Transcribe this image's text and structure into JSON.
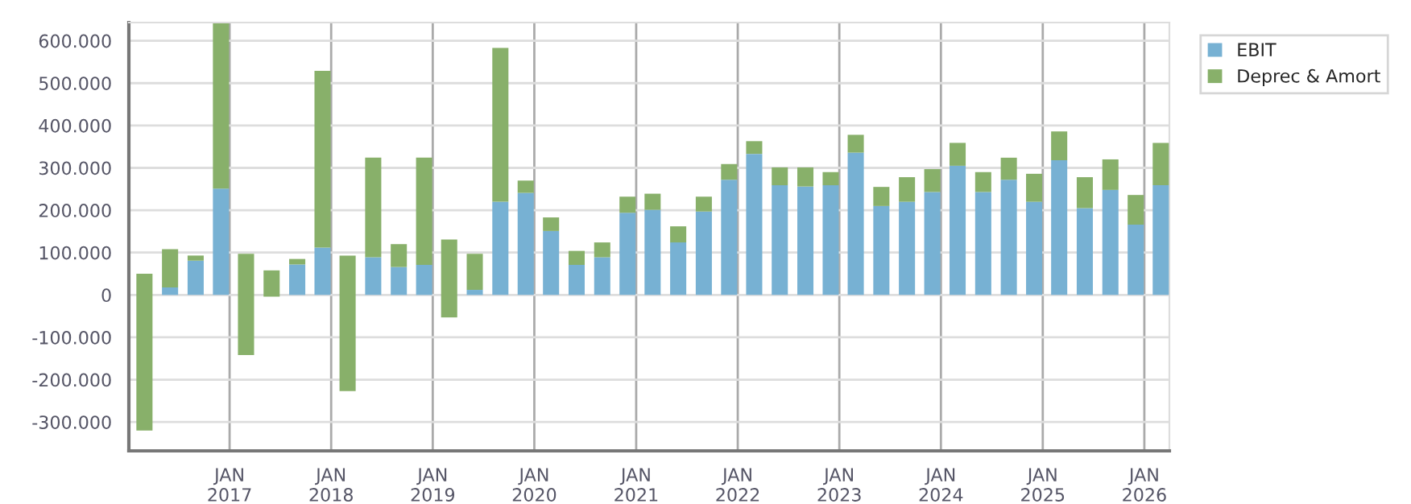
{
  "chart_data": {
    "type": "bar",
    "x": [
      "2016-03",
      "2016-06",
      "2016-09",
      "2016-12",
      "2017-03",
      "2017-06",
      "2017-09",
      "2017-12",
      "2018-03",
      "2018-06",
      "2018-09",
      "2018-12",
      "2019-03",
      "2019-06",
      "2019-09",
      "2019-12",
      "2020-03",
      "2020-06",
      "2020-09",
      "2020-12",
      "2021-03",
      "2021-06",
      "2021-09",
      "2021-12",
      "2022-03",
      "2022-06",
      "2022-09",
      "2022-12",
      "2023-03",
      "2023-06",
      "2023-09",
      "2023-12",
      "2024-03",
      "2024-06",
      "2024-09",
      "2024-12",
      "2025-03",
      "2025-06",
      "2025-09",
      "2025-12",
      "2026-03"
    ],
    "series": [
      {
        "name": "EBIT",
        "color": "#77b1d3",
        "values": [
          null,
          18000,
          81000,
          251000,
          null,
          null,
          72000,
          112000,
          null,
          89000,
          66000,
          71000,
          null,
          12000,
          220000,
          241000,
          151000,
          71000,
          89000,
          194000,
          201000,
          124000,
          197000,
          272000,
          333000,
          259000,
          256000,
          259000,
          336000,
          210000,
          220000,
          243000,
          305000,
          243000,
          272000,
          220000,
          318000,
          205000,
          248000,
          166000,
          259000
        ]
      },
      {
        "name": "Deprec & Amort",
        "color": "#88b06a",
        "values": [
          370000,
          90000,
          12000,
          390000,
          239000,
          62000,
          13000,
          417000,
          320000,
          235000,
          54000,
          253000,
          184000,
          85000,
          363000,
          29000,
          32000,
          33000,
          35000,
          38000,
          38000,
          38000,
          35000,
          37000,
          30000,
          42000,
          45000,
          31000,
          42000,
          45000,
          58000,
          54000,
          54000,
          47000,
          52000,
          66000,
          68000,
          73000,
          72000,
          70000,
          100000
        ],
        "base": [
          -320000,
          null,
          null,
          null,
          -142000,
          -4000,
          null,
          null,
          -227000,
          null,
          null,
          null,
          -53000,
          null,
          null,
          null,
          null,
          null,
          null,
          null,
          null,
          null,
          null,
          null,
          null,
          null,
          null,
          null,
          null,
          null,
          null,
          null,
          null,
          null,
          null,
          null,
          null,
          null,
          null,
          null,
          null
        ]
      }
    ],
    "stacked": true,
    "xlim": [
      "2016-01-05",
      "2026-04-01"
    ],
    "xticks": [
      {
        "value": "2017-01-01",
        "label": "JAN\n2017"
      },
      {
        "value": "2018-01-01",
        "label": "JAN\n2018"
      },
      {
        "value": "2019-01-01",
        "label": "JAN\n2019"
      },
      {
        "value": "2020-01-01",
        "label": "JAN\n2020"
      },
      {
        "value": "2021-01-01",
        "label": "JAN\n2021"
      },
      {
        "value": "2022-01-01",
        "label": "JAN\n2022"
      },
      {
        "value": "2023-01-01",
        "label": "JAN\n2023"
      },
      {
        "value": "2024-01-01",
        "label": "JAN\n2024"
      },
      {
        "value": "2025-01-01",
        "label": "JAN\n2025"
      },
      {
        "value": "2026-01-01",
        "label": "JAN\n2026"
      }
    ],
    "ylim": [
      -368000,
      643000
    ],
    "yticks": [
      {
        "value": -300000,
        "label": "-300.000"
      },
      {
        "value": -200000,
        "label": "-200.000"
      },
      {
        "value": -100000,
        "label": "-100.000"
      },
      0,
      {
        "value": 100000,
        "label": "100.000"
      },
      {
        "value": 200000,
        "label": "200.000"
      },
      {
        "value": 300000,
        "label": "300.000"
      },
      {
        "value": 400000,
        "label": "400.000"
      },
      {
        "value": 500000,
        "label": "500.000"
      },
      {
        "value": 600000,
        "label": "600.000"
      }
    ],
    "grid": true,
    "legend": "top right"
  }
}
